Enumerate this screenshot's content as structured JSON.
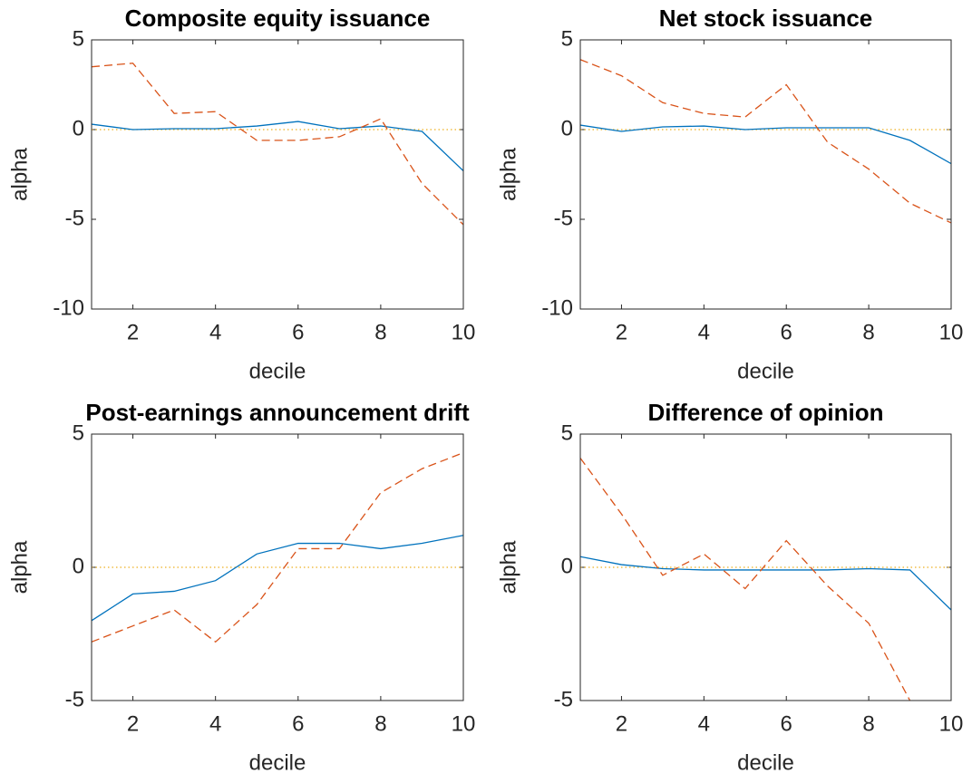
{
  "chart_data": [
    {
      "type": "line",
      "title": "Composite equity issuance",
      "xlabel": "decile",
      "ylabel": "alpha",
      "x": [
        1,
        2,
        3,
        4,
        5,
        6,
        7,
        8,
        9,
        10
      ],
      "xlim": [
        1,
        10
      ],
      "xticks": [
        2,
        4,
        6,
        8,
        10
      ],
      "ylim": [
        -10,
        5
      ],
      "yticks": [
        -10,
        -5,
        0,
        5
      ],
      "hline": 0,
      "hline_color": "#edb120",
      "series": [
        {
          "color": "#0072bd",
          "linestyle": "solid",
          "values": [
            0.3,
            0.0,
            0.05,
            0.05,
            0.2,
            0.45,
            0.05,
            0.2,
            -0.1,
            -2.3
          ]
        },
        {
          "color": "#d95319",
          "linestyle": "dashed",
          "values": [
            3.5,
            3.7,
            0.9,
            1.0,
            -0.6,
            -0.6,
            -0.4,
            0.6,
            -3.0,
            -5.3
          ]
        }
      ]
    },
    {
      "type": "line",
      "title": "Net stock issuance",
      "xlabel": "decile",
      "ylabel": "alpha",
      "x": [
        1,
        2,
        3,
        4,
        5,
        6,
        7,
        8,
        9,
        10
      ],
      "xlim": [
        1,
        10
      ],
      "xticks": [
        2,
        4,
        6,
        8,
        10
      ],
      "ylim": [
        -10,
        5
      ],
      "yticks": [
        -10,
        -5,
        0,
        5
      ],
      "hline": 0,
      "hline_color": "#edb120",
      "series": [
        {
          "color": "#0072bd",
          "linestyle": "solid",
          "values": [
            0.25,
            -0.1,
            0.15,
            0.2,
            0.0,
            0.1,
            0.1,
            0.1,
            -0.6,
            -1.9
          ]
        },
        {
          "color": "#d95319",
          "linestyle": "dashed",
          "values": [
            3.9,
            3.0,
            1.5,
            0.9,
            0.7,
            2.5,
            -0.7,
            -2.2,
            -4.1,
            -5.2
          ]
        }
      ]
    },
    {
      "type": "line",
      "title": "Post-earnings announcement drift",
      "xlabel": "decile",
      "ylabel": "alpha",
      "x": [
        1,
        2,
        3,
        4,
        5,
        6,
        7,
        8,
        9,
        10
      ],
      "xlim": [
        1,
        10
      ],
      "xticks": [
        2,
        4,
        6,
        8,
        10
      ],
      "ylim": [
        -5,
        5
      ],
      "yticks": [
        -5,
        0,
        5
      ],
      "hline": 0,
      "hline_color": "#edb120",
      "series": [
        {
          "color": "#0072bd",
          "linestyle": "solid",
          "values": [
            -2.0,
            -1.0,
            -0.9,
            -0.5,
            0.5,
            0.9,
            0.9,
            0.7,
            0.9,
            1.2
          ]
        },
        {
          "color": "#d95319",
          "linestyle": "dashed",
          "values": [
            -2.8,
            -2.2,
            -1.6,
            -2.8,
            -1.4,
            0.7,
            0.7,
            2.8,
            3.7,
            4.3
          ]
        }
      ]
    },
    {
      "type": "line",
      "title": "Difference of opinion",
      "xlabel": "decile",
      "ylabel": "alpha",
      "x": [
        1,
        2,
        3,
        4,
        5,
        6,
        7,
        8,
        9,
        10
      ],
      "xlim": [
        1,
        10
      ],
      "xticks": [
        2,
        4,
        6,
        8,
        10
      ],
      "ylim": [
        -5,
        5
      ],
      "yticks": [
        -5,
        0,
        5
      ],
      "hline": 0,
      "hline_color": "#edb120",
      "series": [
        {
          "color": "#0072bd",
          "linestyle": "solid",
          "values": [
            0.4,
            0.1,
            -0.05,
            -0.1,
            -0.1,
            -0.1,
            -0.1,
            -0.05,
            -0.1,
            -1.6
          ]
        },
        {
          "color": "#d95319",
          "linestyle": "dashed",
          "values": [
            4.1,
            2.0,
            -0.3,
            0.5,
            -0.8,
            1.0,
            -0.7,
            -2.1,
            -5.0,
            null
          ]
        }
      ]
    }
  ]
}
